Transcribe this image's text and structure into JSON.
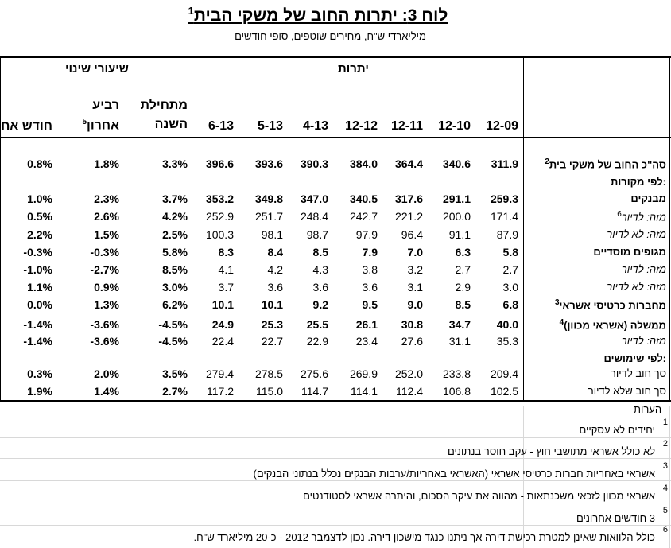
{
  "title": "לוח 3:  יתרות החוב של משקי הבית",
  "title_sup": "1",
  "subtitle": "מיליארדי ש\"ח, מחירים שוטפים, סופי חודשים",
  "group_balances": "יתרות",
  "group_rates": "שיעורי שינוי",
  "col_headers": [
    {
      "text": "12-09"
    },
    {
      "text": "12-10"
    },
    {
      "text": "12-11"
    },
    {
      "text": "12-12"
    },
    {
      "text": "4-13"
    },
    {
      "text": "5-13"
    },
    {
      "text": "6-13"
    },
    {
      "line1": "מתחילת",
      "line2": "השנה"
    },
    {
      "line1": "רביע",
      "line2": "אחרון",
      "sup": "5"
    },
    {
      "text": "חודש אחרון"
    }
  ],
  "rows": [
    {
      "label": "סה\"כ החוב של משקי בית",
      "sup": "2",
      "style": "bold",
      "values": [
        "311.9",
        "340.6",
        "364.4",
        "384.0",
        "390.3",
        "393.6",
        "396.6",
        "3.3%",
        "1.8%",
        "0.8%"
      ]
    },
    {
      "label": "לפי מקורות:",
      "style": "bold",
      "values": []
    },
    {
      "label": "מבנקים",
      "style": "bold",
      "values": [
        "259.3",
        "291.1",
        "317.6",
        "340.5",
        "347.0",
        "349.8",
        "353.2",
        "3.7%",
        "2.3%",
        "1.0%"
      ]
    },
    {
      "label": "מזה: לדיור",
      "sup": "6",
      "style": "italic",
      "values": [
        "171.4",
        "200.0",
        "221.2",
        "242.7",
        "248.4",
        "251.7",
        "252.9",
        "4.2%",
        "2.6%",
        "0.5%"
      ]
    },
    {
      "label": "מזה: לא לדיור",
      "style": "italic",
      "values": [
        "87.9",
        "91.1",
        "96.4",
        "97.9",
        "98.7",
        "98.1",
        "100.3",
        "2.5%",
        "1.5%",
        "2.2%"
      ]
    },
    {
      "label": "מגופים מוסדיים",
      "style": "bold",
      "values": [
        "5.8",
        "6.3",
        "7.0",
        "7.9",
        "8.5",
        "8.4",
        "8.3",
        "5.8%",
        "-0.3%",
        "-0.3%"
      ]
    },
    {
      "label": "מזה: לדיור",
      "style": "italic",
      "values": [
        "2.7",
        "2.7",
        "3.2",
        "3.8",
        "4.3",
        "4.2",
        "4.1",
        "8.5%",
        "-2.7%",
        "-1.0%"
      ]
    },
    {
      "label": "מזה: לא לדיור",
      "style": "italic",
      "values": [
        "3.0",
        "2.9",
        "3.1",
        "3.6",
        "3.6",
        "3.6",
        "3.7",
        "3.0%",
        "0.9%",
        "1.1%"
      ]
    },
    {
      "label": "מחברות כרטיסי אשראי",
      "sup": "3",
      "style": "bold",
      "values": [
        "6.8",
        "8.5",
        "9.0",
        "9.5",
        "9.2",
        "10.1",
        "10.1",
        "6.2%",
        "1.3%",
        "0.0%"
      ]
    },
    {
      "label": "ממשלה (אשראי מכוון)",
      "sup": "4",
      "style": "bold",
      "values": [
        "40.0",
        "34.7",
        "30.8",
        "26.1",
        "25.5",
        "25.3",
        "24.9",
        "-4.5%",
        "-3.6%",
        "-1.4%"
      ]
    },
    {
      "label": "מזה: לדיור",
      "style": "italic",
      "values": [
        "35.3",
        "31.1",
        "27.6",
        "23.4",
        "22.9",
        "22.7",
        "22.4",
        "-4.5%",
        "-3.6%",
        "-1.4%"
      ]
    },
    {
      "label": "לפי שימושים:",
      "style": "bold",
      "values": []
    },
    {
      "label": "סך חוב לדיור",
      "style": "normal",
      "values": [
        "209.4",
        "233.8",
        "252.0",
        "269.9",
        "275.6",
        "278.5",
        "279.4",
        "3.5%",
        "2.0%",
        "0.3%"
      ]
    },
    {
      "label": "סך חוב שלא לדיור",
      "style": "normal",
      "values": [
        "102.5",
        "106.8",
        "112.4",
        "114.1",
        "114.7",
        "115.0",
        "117.2",
        "2.7%",
        "1.4%",
        "1.9%"
      ]
    }
  ],
  "notes_title": "הערות",
  "notes": [
    {
      "num": "1",
      "text": "יחידים לא עסקיים"
    },
    {
      "num": "2",
      "text": "לא כולל אשראי מתושבי חוץ - עקב חוסר בנתונים"
    },
    {
      "num": "3",
      "text": "אשראי באחריות חברות כרטיסי אשראי (האשראי באחריות/ערבות הבנקים נכלל בנתוני הבנקים)"
    },
    {
      "num": "4",
      "text": "אשראי מכוון לזכאי משכנתאות - מהווה את עיקר הסכום, והיתרה אשראי לסטודנטים"
    },
    {
      "num": "5",
      "text": "3 חודשים אחרונים"
    },
    {
      "num": "6",
      "text": "כולל הלוואות שאינן למטרת רכישת דירה אך ניתנו כנגד מישכון דירה. נכון לדצמבר 2012 - כ-20 מיליארד ש\"ח."
    }
  ]
}
